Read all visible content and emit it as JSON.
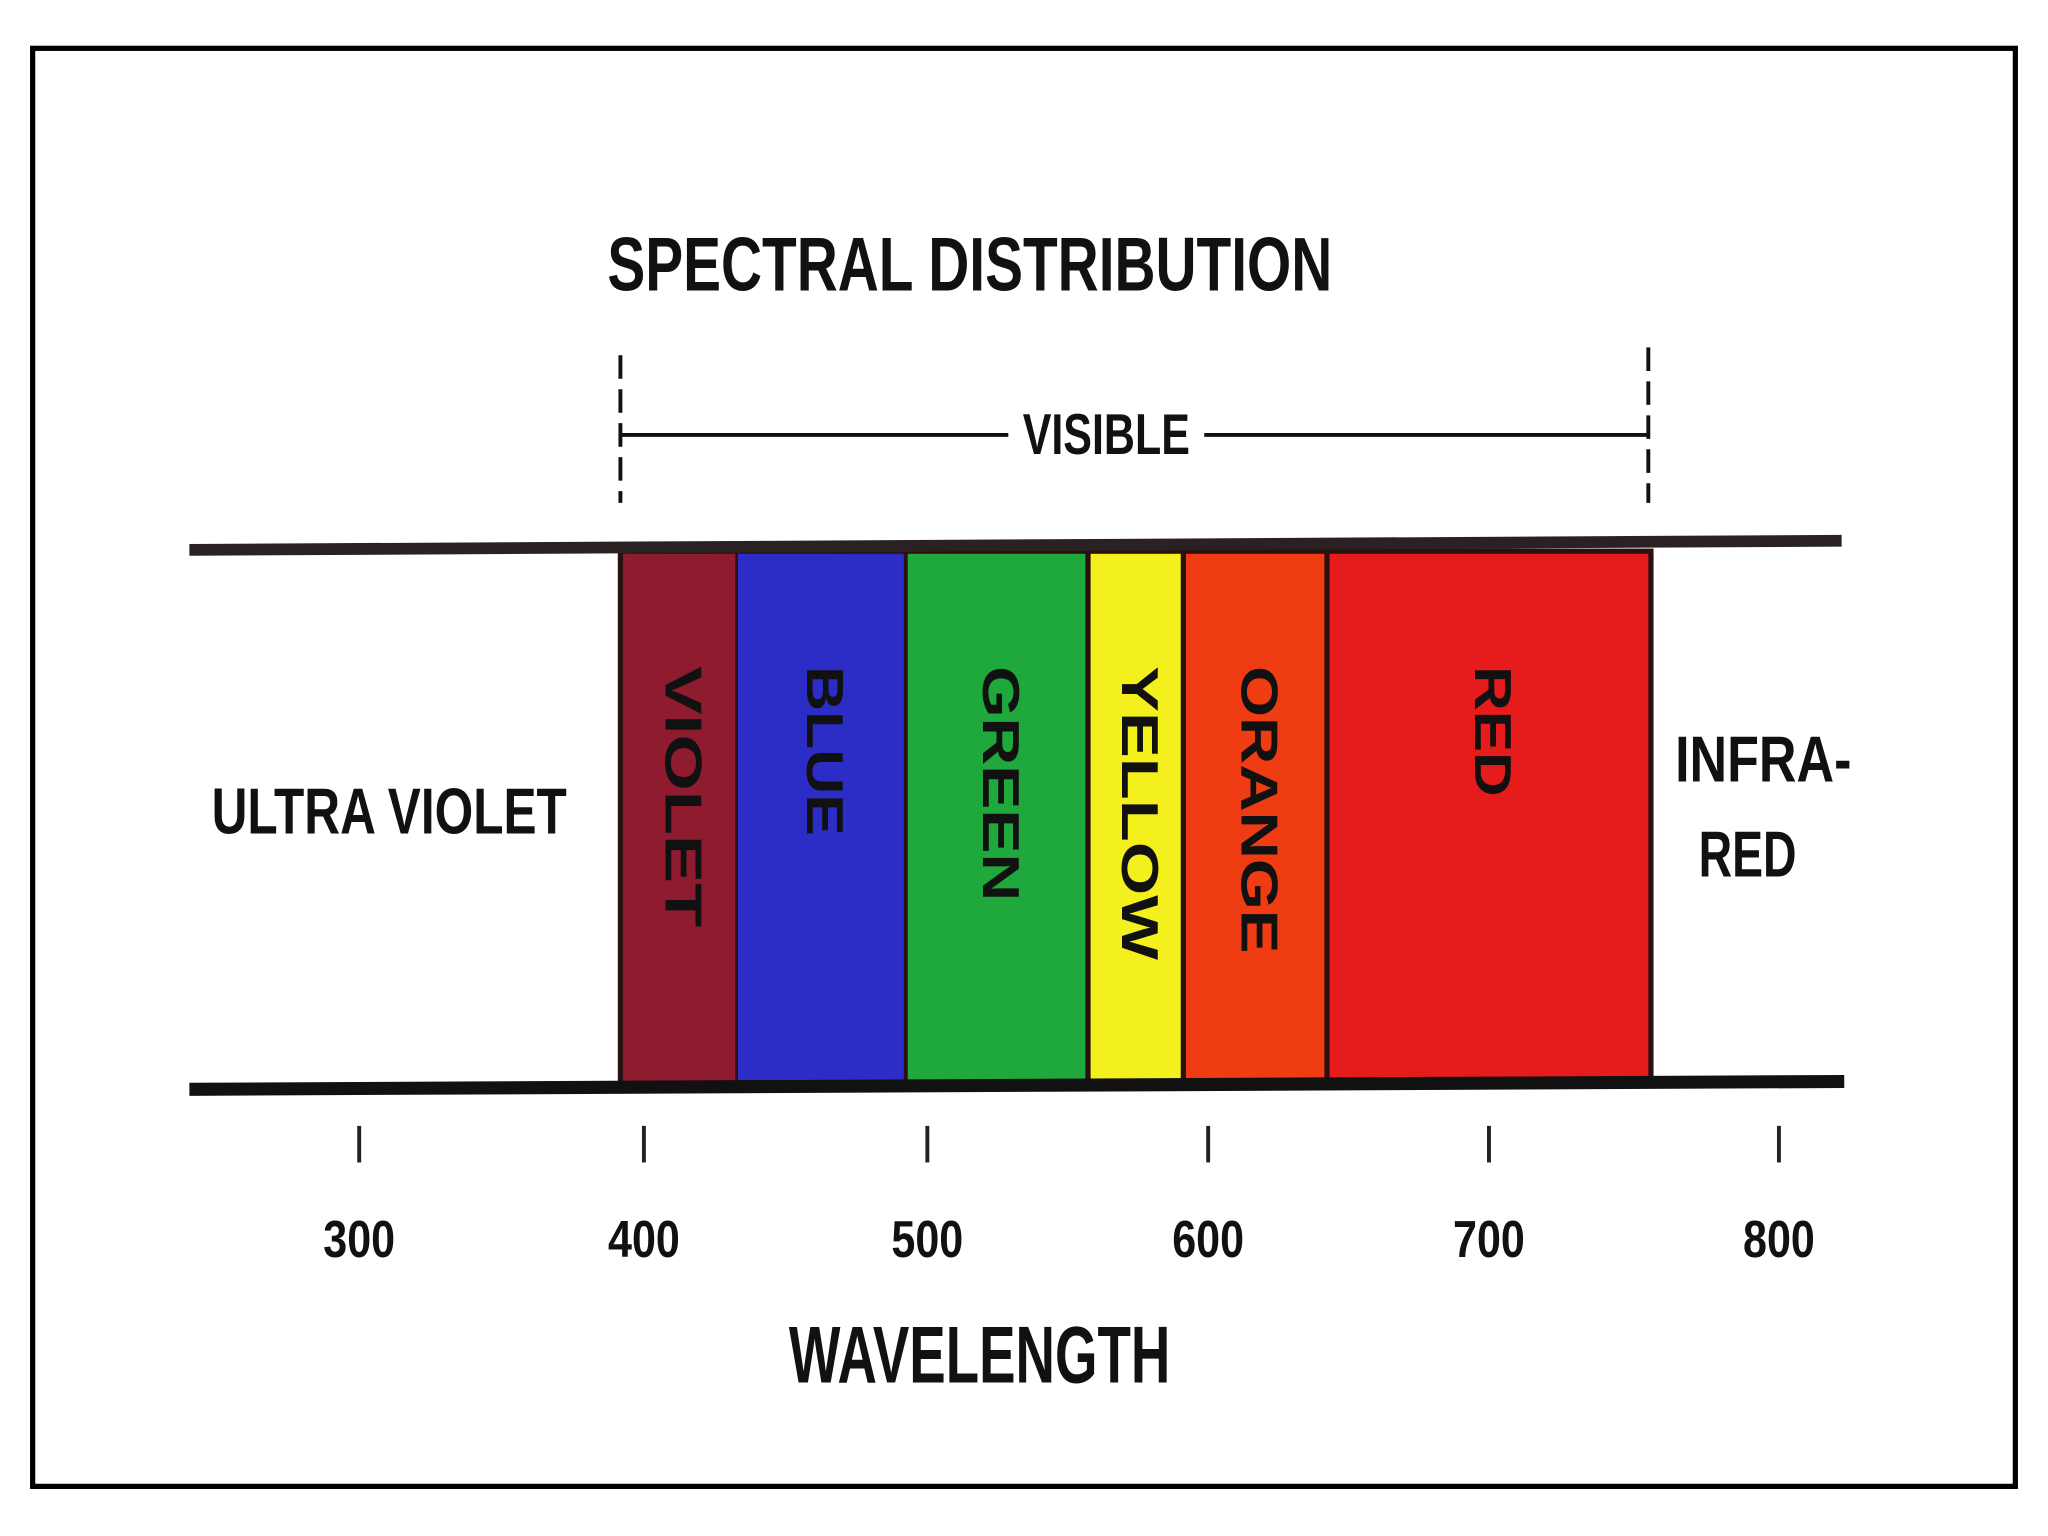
{
  "title": "SPECTRAL DISTRIBUTION",
  "visible_label": "VISIBLE",
  "regions": {
    "ultraviolet": "ULTRA VIOLET",
    "infrared": [
      "INFRA-",
      "RED"
    ]
  },
  "bands": [
    {
      "label": "VIOLET",
      "color": "#8e1b2e"
    },
    {
      "label": "BLUE",
      "color": "#2c2cc6"
    },
    {
      "label": "GREEN",
      "color": "#1fa83c"
    },
    {
      "label": "YELLOW",
      "color": "#f4f01e"
    },
    {
      "label": "ORANGE",
      "color": "#f03c12"
    },
    {
      "label": "RED",
      "color": "#e61c1c"
    }
  ],
  "ticks": [
    "300",
    "400",
    "500",
    "600",
    "700",
    "800"
  ],
  "axis_label": "WAVELENGTH"
}
